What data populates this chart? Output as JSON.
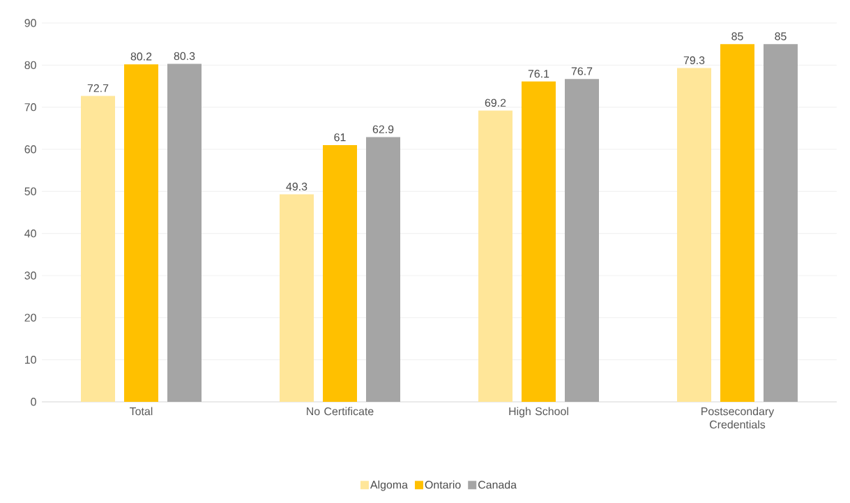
{
  "chart_data": {
    "type": "bar",
    "categories": [
      "Total",
      "No Certificate",
      "High School",
      "Postsecondary Credentials"
    ],
    "series": [
      {
        "name": "Algoma",
        "color": "#ffe699",
        "values": [
          72.7,
          49.3,
          69.2,
          79.3
        ]
      },
      {
        "name": "Ontario",
        "color": "#ffc000",
        "values": [
          80.2,
          61,
          76.1,
          85
        ]
      },
      {
        "name": "Canada",
        "color": "#a5a5a5",
        "values": [
          80.3,
          62.9,
          76.7,
          85
        ]
      }
    ],
    "ylim": [
      0,
      90
    ],
    "yticks": [
      0,
      10,
      20,
      30,
      40,
      50,
      60,
      70,
      80,
      90
    ],
    "grid": "y",
    "legend": "bottom",
    "data_labels": true
  }
}
